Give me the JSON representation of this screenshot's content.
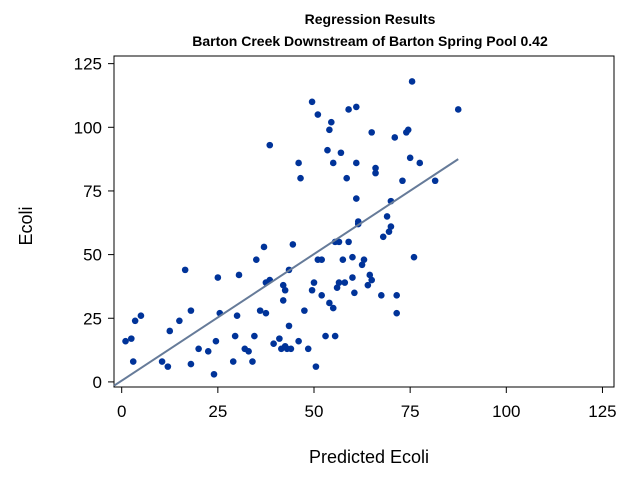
{
  "chart_data": {
    "type": "scatter",
    "title": "Regression Results",
    "subtitle": "Barton Creek Downstream of Barton Spring Pool 0.42",
    "xlabel": "Predicted Ecoli",
    "ylabel": "Ecoli",
    "xlim": [
      -2,
      128
    ],
    "ylim": [
      -2,
      128
    ],
    "xticks": [
      0,
      25,
      50,
      75,
      100,
      125
    ],
    "yticks": [
      0,
      25,
      50,
      75,
      100,
      125
    ],
    "grid": false,
    "colors": {
      "points": "#003399",
      "fit_line": "#667B99",
      "frame": "#000000"
    },
    "series": [
      {
        "type": "scatter",
        "points": [
          [
            1,
            16
          ],
          [
            2.5,
            17
          ],
          [
            3,
            8
          ],
          [
            3.5,
            24
          ],
          [
            5,
            26
          ],
          [
            10.5,
            8
          ],
          [
            12,
            6
          ],
          [
            12.5,
            20
          ],
          [
            15,
            24
          ],
          [
            16.5,
            44
          ],
          [
            18,
            7
          ],
          [
            18,
            28
          ],
          [
            20,
            13
          ],
          [
            22.5,
            12
          ],
          [
            24,
            3
          ],
          [
            24.5,
            16
          ],
          [
            25,
            41
          ],
          [
            25.5,
            27
          ],
          [
            29,
            8
          ],
          [
            29.5,
            18
          ],
          [
            30,
            26
          ],
          [
            30.5,
            42
          ],
          [
            32,
            13
          ],
          [
            33,
            12
          ],
          [
            34,
            8
          ],
          [
            34.5,
            18
          ],
          [
            35,
            48
          ],
          [
            36,
            28
          ],
          [
            37,
            53
          ],
          [
            37.5,
            27
          ],
          [
            37.5,
            39
          ],
          [
            38.5,
            93
          ],
          [
            38.5,
            40
          ],
          [
            39.5,
            15
          ],
          [
            41,
            17
          ],
          [
            41.5,
            13
          ],
          [
            42,
            32
          ],
          [
            42,
            38
          ],
          [
            42.5,
            36
          ],
          [
            42.5,
            14
          ],
          [
            43,
            13
          ],
          [
            43.5,
            22
          ],
          [
            43.5,
            44
          ],
          [
            44,
            13
          ],
          [
            44.5,
            54
          ],
          [
            46,
            86
          ],
          [
            46.5,
            80
          ],
          [
            46,
            16
          ],
          [
            47.5,
            28
          ],
          [
            48.5,
            13
          ],
          [
            49.5,
            36
          ],
          [
            49.5,
            110
          ],
          [
            50,
            39
          ],
          [
            50.5,
            6
          ],
          [
            51,
            105
          ],
          [
            51,
            48
          ],
          [
            52,
            34
          ],
          [
            52,
            48
          ],
          [
            53,
            18
          ],
          [
            53.5,
            91
          ],
          [
            54,
            99
          ],
          [
            54,
            31
          ],
          [
            54.5,
            102
          ],
          [
            55,
            86
          ],
          [
            55,
            29
          ],
          [
            55.5,
            18
          ],
          [
            55.5,
            55
          ],
          [
            56,
            37
          ],
          [
            56.5,
            39
          ],
          [
            56.5,
            55
          ],
          [
            57,
            90
          ],
          [
            57.5,
            48
          ],
          [
            58,
            39
          ],
          [
            58.5,
            80
          ],
          [
            59,
            55
          ],
          [
            59,
            107
          ],
          [
            60,
            49
          ],
          [
            60,
            41
          ],
          [
            60.5,
            35
          ],
          [
            61,
            108
          ],
          [
            61,
            86
          ],
          [
            61,
            72
          ],
          [
            61.5,
            63
          ],
          [
            61.5,
            62
          ],
          [
            62.5,
            46
          ],
          [
            63,
            48
          ],
          [
            64,
            38
          ],
          [
            64.5,
            42
          ],
          [
            65,
            98
          ],
          [
            65,
            40
          ],
          [
            66,
            82
          ],
          [
            66,
            84
          ],
          [
            67.5,
            34
          ],
          [
            68,
            57
          ],
          [
            69,
            65
          ],
          [
            69.5,
            59
          ],
          [
            70,
            61
          ],
          [
            70,
            71
          ],
          [
            71,
            96
          ],
          [
            71.5,
            34
          ],
          [
            71.5,
            27
          ],
          [
            73,
            79
          ],
          [
            74,
            98
          ],
          [
            74.5,
            99
          ],
          [
            75,
            88
          ],
          [
            75.5,
            118
          ],
          [
            76,
            49
          ],
          [
            77.5,
            86
          ],
          [
            81.5,
            79
          ],
          [
            87.5,
            107
          ]
        ]
      },
      {
        "type": "line",
        "points": [
          [
            -2,
            -1.5
          ],
          [
            87.5,
            87.5
          ]
        ]
      }
    ]
  }
}
